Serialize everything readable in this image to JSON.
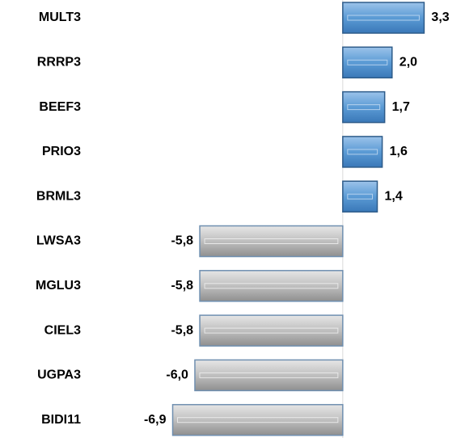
{
  "chart_data": {
    "type": "hbar",
    "categories": [
      "MULT3",
      "RRRP3",
      "BEEF3",
      "PRIO3",
      "BRML3",
      "LWSA3",
      "MGLU3",
      "CIEL3",
      "UGPA3",
      "BIDI11"
    ],
    "values": [
      3.3,
      2.0,
      1.7,
      1.6,
      1.4,
      -5.8,
      -5.8,
      -5.8,
      -6.0,
      -6.9
    ],
    "value_labels": [
      "3,3",
      "2,0",
      "1,7",
      "1,6",
      "1,4",
      "-5,8",
      "-5,8",
      "-5,8",
      "-6,0",
      "-6,9"
    ],
    "positive_color": "#5b9bd5",
    "negative_color": "#bfbfbf",
    "xlim": [
      -8,
      4.5
    ]
  }
}
